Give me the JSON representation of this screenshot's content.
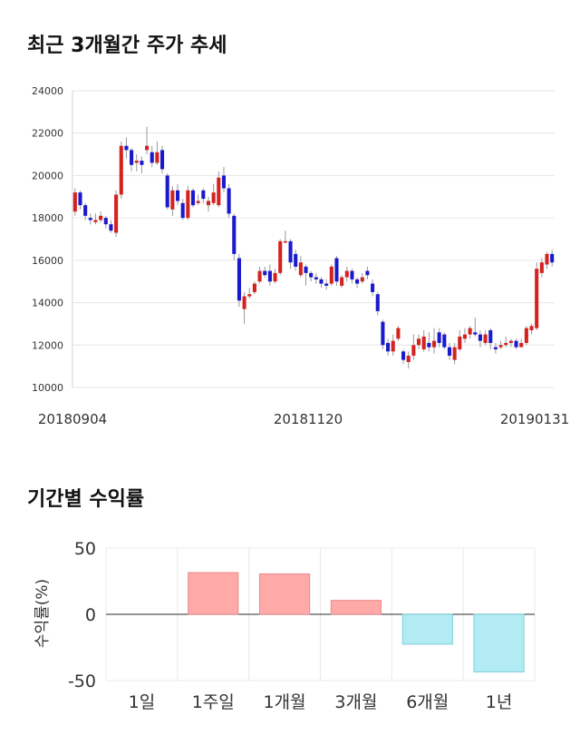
{
  "section1": {
    "title": "최근 3개월간 주가 추세"
  },
  "section2": {
    "title": "기간별 수익률"
  },
  "chart_data": [
    {
      "type": "candlestick",
      "title": "최근 3개월간 주가 추세",
      "ylim": [
        10000,
        24000
      ],
      "y_ticks": [
        "24000",
        "22000",
        "20000",
        "18000",
        "16000",
        "14000",
        "12000",
        "10000"
      ],
      "x_tick_labels": [
        "20180904",
        "20181120",
        "20190131"
      ],
      "candles": [
        {
          "o": 18300,
          "c": 19200,
          "h": 19400,
          "l": 18100
        },
        {
          "o": 19200,
          "c": 18600,
          "h": 19300,
          "l": 18400
        },
        {
          "o": 18600,
          "c": 18100,
          "h": 18700,
          "l": 17900
        },
        {
          "o": 18000,
          "c": 17900,
          "h": 18200,
          "l": 17700
        },
        {
          "o": 17800,
          "c": 17900,
          "h": 18200,
          "l": 17700
        },
        {
          "o": 17900,
          "c": 18100,
          "h": 18300,
          "l": 17800
        },
        {
          "o": 18000,
          "c": 17700,
          "h": 18100,
          "l": 17500
        },
        {
          "o": 17700,
          "c": 17400,
          "h": 17900,
          "l": 17300
        },
        {
          "o": 17300,
          "c": 19100,
          "h": 19300,
          "l": 17100
        },
        {
          "o": 19100,
          "c": 21400,
          "h": 21600,
          "l": 18900
        },
        {
          "o": 21400,
          "c": 21200,
          "h": 21800,
          "l": 20800
        },
        {
          "o": 21200,
          "c": 20500,
          "h": 21300,
          "l": 20200
        },
        {
          "o": 20600,
          "c": 20700,
          "h": 21000,
          "l": 20200
        },
        {
          "o": 20700,
          "c": 20500,
          "h": 20900,
          "l": 20100
        },
        {
          "o": 21200,
          "c": 21400,
          "h": 22300,
          "l": 21000
        },
        {
          "o": 21100,
          "c": 20600,
          "h": 21400,
          "l": 20400
        },
        {
          "o": 20600,
          "c": 21100,
          "h": 21600,
          "l": 20500
        },
        {
          "o": 21200,
          "c": 20300,
          "h": 21400,
          "l": 20100
        },
        {
          "o": 20000,
          "c": 18500,
          "h": 20100,
          "l": 18400
        },
        {
          "o": 18400,
          "c": 19300,
          "h": 19500,
          "l": 18100
        },
        {
          "o": 19300,
          "c": 18800,
          "h": 19600,
          "l": 18600
        },
        {
          "o": 18700,
          "c": 18000,
          "h": 18900,
          "l": 17900
        },
        {
          "o": 18000,
          "c": 19300,
          "h": 19500,
          "l": 17900
        },
        {
          "o": 19300,
          "c": 18600,
          "h": 19400,
          "l": 18500
        },
        {
          "o": 18700,
          "c": 18800,
          "h": 19100,
          "l": 18600
        },
        {
          "o": 19300,
          "c": 18900,
          "h": 19400,
          "l": 18700
        },
        {
          "o": 18600,
          "c": 18800,
          "h": 19000,
          "l": 18300
        },
        {
          "o": 18700,
          "c": 19200,
          "h": 19600,
          "l": 18600
        },
        {
          "o": 18600,
          "c": 19900,
          "h": 20200,
          "l": 18500
        },
        {
          "o": 20000,
          "c": 19400,
          "h": 20400,
          "l": 19200
        },
        {
          "o": 19400,
          "c": 18200,
          "h": 19600,
          "l": 18000
        },
        {
          "o": 18100,
          "c": 16300,
          "h": 18200,
          "l": 16000
        },
        {
          "o": 16100,
          "c": 14100,
          "h": 16300,
          "l": 13800
        },
        {
          "o": 13700,
          "c": 14300,
          "h": 14500,
          "l": 13000
        },
        {
          "o": 14300,
          "c": 14400,
          "h": 14700,
          "l": 14200
        },
        {
          "o": 14500,
          "c": 14900,
          "h": 15000,
          "l": 14400
        },
        {
          "o": 15000,
          "c": 15500,
          "h": 15700,
          "l": 14900
        },
        {
          "o": 15500,
          "c": 15300,
          "h": 15700,
          "l": 15200
        },
        {
          "o": 15500,
          "c": 15000,
          "h": 15800,
          "l": 14800
        },
        {
          "o": 15000,
          "c": 15400,
          "h": 15600,
          "l": 14900
        },
        {
          "o": 15400,
          "c": 16900,
          "h": 17000,
          "l": 15300
        },
        {
          "o": 16900,
          "c": 16900,
          "h": 17400,
          "l": 16800
        },
        {
          "o": 16900,
          "c": 15900,
          "h": 17000,
          "l": 15600
        },
        {
          "o": 16300,
          "c": 15700,
          "h": 16500,
          "l": 15500
        },
        {
          "o": 15300,
          "c": 15900,
          "h": 16200,
          "l": 15200
        },
        {
          "o": 15700,
          "c": 15400,
          "h": 15800,
          "l": 14800
        },
        {
          "o": 15400,
          "c": 15200,
          "h": 15500,
          "l": 15000
        },
        {
          "o": 15200,
          "c": 15100,
          "h": 15400,
          "l": 14900
        },
        {
          "o": 15100,
          "c": 14900,
          "h": 15200,
          "l": 14700
        },
        {
          "o": 14900,
          "c": 14800,
          "h": 15100,
          "l": 14600
        },
        {
          "o": 14900,
          "c": 15700,
          "h": 15800,
          "l": 14800
        },
        {
          "o": 16100,
          "c": 15000,
          "h": 16200,
          "l": 14800
        },
        {
          "o": 14800,
          "c": 15200,
          "h": 15300,
          "l": 14700
        },
        {
          "o": 15200,
          "c": 15500,
          "h": 15700,
          "l": 15000
        },
        {
          "o": 15500,
          "c": 15100,
          "h": 15600,
          "l": 14900
        },
        {
          "o": 15100,
          "c": 14900,
          "h": 15200,
          "l": 14700
        },
        {
          "o": 15000,
          "c": 15200,
          "h": 15400,
          "l": 14900
        },
        {
          "o": 15500,
          "c": 15300,
          "h": 15700,
          "l": 15100
        },
        {
          "o": 14900,
          "c": 14500,
          "h": 15100,
          "l": 14300
        },
        {
          "o": 14400,
          "c": 13600,
          "h": 14500,
          "l": 13400
        },
        {
          "o": 13100,
          "c": 12000,
          "h": 13200,
          "l": 11800
        },
        {
          "o": 12100,
          "c": 11700,
          "h": 12300,
          "l": 11500
        },
        {
          "o": 11700,
          "c": 12200,
          "h": 12500,
          "l": 11500
        },
        {
          "o": 12300,
          "c": 12800,
          "h": 12900,
          "l": 12200
        },
        {
          "o": 11700,
          "c": 11300,
          "h": 11800,
          "l": 11100
        },
        {
          "o": 11200,
          "c": 11500,
          "h": 11700,
          "l": 10900
        },
        {
          "o": 11500,
          "c": 12000,
          "h": 12500,
          "l": 11300
        },
        {
          "o": 12000,
          "c": 12300,
          "h": 12500,
          "l": 11800
        },
        {
          "o": 11800,
          "c": 12400,
          "h": 12700,
          "l": 11700
        },
        {
          "o": 12100,
          "c": 11900,
          "h": 12600,
          "l": 11700
        },
        {
          "o": 11900,
          "c": 12200,
          "h": 12800,
          "l": 11600
        },
        {
          "o": 12600,
          "c": 12100,
          "h": 12800,
          "l": 11900
        },
        {
          "o": 12500,
          "c": 11900,
          "h": 12600,
          "l": 11800
        },
        {
          "o": 11900,
          "c": 11500,
          "h": 12100,
          "l": 11300
        },
        {
          "o": 11300,
          "c": 11900,
          "h": 12100,
          "l": 11100
        },
        {
          "o": 11800,
          "c": 12400,
          "h": 12700,
          "l": 11700
        },
        {
          "o": 12300,
          "c": 12500,
          "h": 12800,
          "l": 12100
        },
        {
          "o": 12500,
          "c": 12800,
          "h": 12900,
          "l": 12300
        },
        {
          "o": 12600,
          "c": 12500,
          "h": 13300,
          "l": 12400
        },
        {
          "o": 12500,
          "c": 12200,
          "h": 12700,
          "l": 11900
        },
        {
          "o": 12100,
          "c": 12500,
          "h": 12700,
          "l": 12000
        },
        {
          "o": 12700,
          "c": 12100,
          "h": 12800,
          "l": 11800
        },
        {
          "o": 11900,
          "c": 11800,
          "h": 12100,
          "l": 11600
        },
        {
          "o": 11900,
          "c": 12000,
          "h": 12200,
          "l": 11800
        },
        {
          "o": 12000,
          "c": 12100,
          "h": 12400,
          "l": 11900
        },
        {
          "o": 12100,
          "c": 12200,
          "h": 12300,
          "l": 11900
        },
        {
          "o": 12200,
          "c": 11900,
          "h": 12300,
          "l": 11800
        },
        {
          "o": 11900,
          "c": 12100,
          "h": 12300,
          "l": 11900
        },
        {
          "o": 12100,
          "c": 12800,
          "h": 12900,
          "l": 12000
        },
        {
          "o": 12700,
          "c": 12900,
          "h": 13000,
          "l": 12500
        },
        {
          "o": 12800,
          "c": 15600,
          "h": 15900,
          "l": 12700
        },
        {
          "o": 15400,
          "c": 15900,
          "h": 16100,
          "l": 15200
        },
        {
          "o": 15800,
          "c": 16300,
          "h": 16400,
          "l": 15600
        },
        {
          "o": 16300,
          "c": 15900,
          "h": 16500,
          "l": 15700
        }
      ],
      "colors": {
        "up": "#d4221f",
        "down": "#1a1acd"
      }
    },
    {
      "type": "bar",
      "title": "기간별 수익률",
      "ylabel": "수익률(%)",
      "ylim": [
        -50,
        50
      ],
      "y_ticks": [
        "50",
        "0",
        "-50"
      ],
      "categories": [
        "1일",
        "1주일",
        "1개월",
        "3개월",
        "6개월",
        "1년"
      ],
      "values": [
        0,
        31.5,
        30.5,
        10.5,
        -22.5,
        -43.5
      ],
      "colors": {
        "positive": "#ffa9a9",
        "negative": "#b2ebf2"
      }
    }
  ]
}
